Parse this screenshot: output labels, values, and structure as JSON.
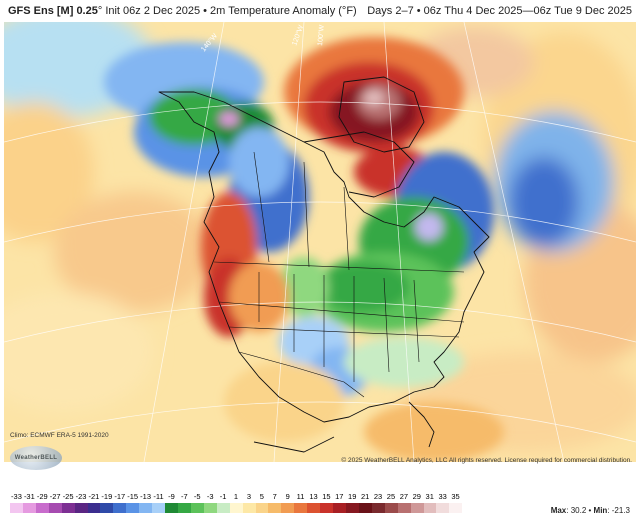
{
  "header": {
    "model": "GFS Ens [M] 0.25",
    "init": "° Init 06z 2 Dec 2025 • 2m Temperature Anomaly (°F)",
    "period": "Days 2–7 • 06z Thu 4 Dec 2025—06z Tue 9 Dec 2025"
  },
  "map": {
    "meridian_labels": [
      "140°W",
      "120°W",
      "100°W"
    ],
    "climo": "Climo: ECMWF ERA-5 1991-2020",
    "copyright": "© 2025 WeatherBELL Analytics, LLC All rights reserved. License required for commercial distribution.",
    "logo_text": "WeatherBELL"
  },
  "colorbar": {
    "labels": [
      "-33",
      "-31",
      "-29",
      "-27",
      "-25",
      "-23",
      "-21",
      "-19",
      "-17",
      "-15",
      "-13",
      "-11",
      "-9",
      "-7",
      "-5",
      "-3",
      "-1",
      "1",
      "3",
      "5",
      "7",
      "9",
      "11",
      "13",
      "15",
      "17",
      "19",
      "21",
      "23",
      "25",
      "27",
      "29",
      "31",
      "33",
      "35"
    ],
    "colors": [
      "#f3c6f0",
      "#e59ae0",
      "#c86ccc",
      "#a64bb0",
      "#7d2f93",
      "#5a2583",
      "#3b2d8e",
      "#2f4aa8",
      "#3f6fcd",
      "#5a93e6",
      "#83b6f2",
      "#a8d0f8",
      "#1f8a35",
      "#35a844",
      "#5cc25a",
      "#8fd87f",
      "#c8ecc4",
      "#fff6cf",
      "#fde8a6",
      "#fad48a",
      "#f6bb6a",
      "#f19c52",
      "#e9773e",
      "#dc5230",
      "#c9322a",
      "#a81f24",
      "#861820",
      "#6a1218",
      "#7a2a2e",
      "#9b4b4b",
      "#b87070",
      "#cf9898",
      "#e2bdbd",
      "#f1dcdc",
      "#fbf1f1"
    ],
    "max_label": "Max",
    "max_value": "30.2",
    "min_label": "Min",
    "min_value": "-21.3"
  }
}
